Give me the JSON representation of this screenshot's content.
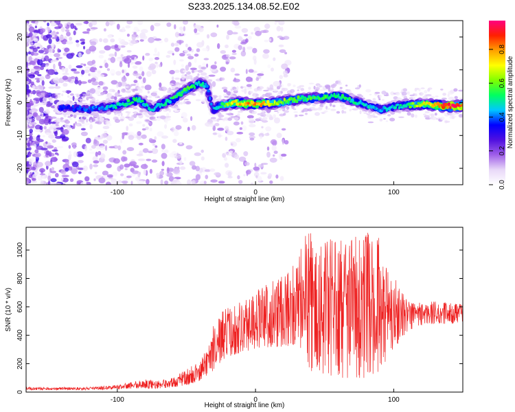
{
  "title": "S233.2025.134.08.52.E02",
  "colors": {
    "snr_line": "#ee2222",
    "plot_border": "#000000",
    "background": "#ffffff"
  },
  "chart_data": [
    {
      "type": "heatmap",
      "xlabel": "Height of straight line (km)",
      "ylabel": "Frequency (Hz)",
      "xlim": [
        -166,
        150
      ],
      "ylim": [
        -25,
        25
      ],
      "x_ticks": [
        -100,
        0,
        100
      ],
      "y_ticks": [
        -20,
        -10,
        0,
        10,
        20
      ],
      "grid": false,
      "colorbar": {
        "label": "Normalized spectral amplitude",
        "range": [
          0,
          0.97
        ],
        "ticks": [
          0.0,
          0.2,
          0.4,
          0.6,
          0.8
        ],
        "colormap": [
          "#ffffff",
          "#e8d8f8",
          "#a060e8",
          "#5010e0",
          "#0000ff",
          "#00c8ff",
          "#00ff60",
          "#80ff00",
          "#ffff00",
          "#ffa000",
          "#ff2000",
          "#ff0080"
        ]
      },
      "ridge": {
        "x": [
          -140,
          -120,
          -100,
          -85,
          -75,
          -60,
          -50,
          -45,
          -40,
          -35,
          -32,
          -30,
          -25,
          -15,
          0,
          15,
          30,
          45,
          60,
          75,
          90,
          105,
          120,
          135,
          150
        ],
        "frequency": [
          -1.5,
          -2,
          -1,
          1,
          -2,
          1,
          4,
          5,
          6,
          5,
          -1,
          -2,
          -1,
          0,
          -0.5,
          0,
          1,
          1.5,
          2,
          0,
          -2,
          -1,
          -0.5,
          -1,
          -1
        ],
        "peak_amplitude": [
          0.35,
          0.4,
          0.5,
          0.55,
          0.45,
          0.55,
          0.6,
          0.55,
          0.5,
          0.45,
          0.4,
          0.5,
          0.55,
          0.75,
          0.85,
          0.65,
          0.6,
          0.55,
          0.55,
          0.5,
          0.45,
          0.5,
          0.7,
          0.9,
          0.95
        ]
      }
    },
    {
      "type": "line",
      "xlabel": "Height of straight line (km)",
      "ylabel": "SNR (10 * v/v)",
      "xlim": [
        -166,
        150
      ],
      "ylim": [
        0,
        1160
      ],
      "x_ticks": [
        -100,
        0,
        100
      ],
      "y_ticks": [
        0,
        200,
        400,
        600,
        800,
        1000
      ],
      "grid": false,
      "series": [
        {
          "envelope_x": [
            -166,
            -120,
            -100,
            -90,
            -80,
            -70,
            -60,
            -50,
            -40,
            -35,
            -30,
            -25,
            -20,
            -10,
            0,
            10,
            20,
            30,
            35,
            40,
            50,
            60,
            70,
            80,
            90,
            100,
            110,
            120,
            130,
            140,
            150
          ],
          "envelope_min": [
            15,
            15,
            20,
            25,
            25,
            25,
            35,
            45,
            80,
            120,
            150,
            200,
            250,
            280,
            300,
            300,
            320,
            330,
            250,
            150,
            120,
            100,
            100,
            100,
            150,
            300,
            430,
            470,
            480,
            480,
            490
          ],
          "envelope_max": [
            35,
            35,
            50,
            70,
            90,
            80,
            100,
            160,
            220,
            320,
            480,
            560,
            600,
            650,
            720,
            780,
            860,
            900,
            1150,
            1120,
            1080,
            1100,
            1150,
            1130,
            1100,
            820,
            660,
            640,
            640,
            630,
            620
          ]
        }
      ]
    }
  ]
}
